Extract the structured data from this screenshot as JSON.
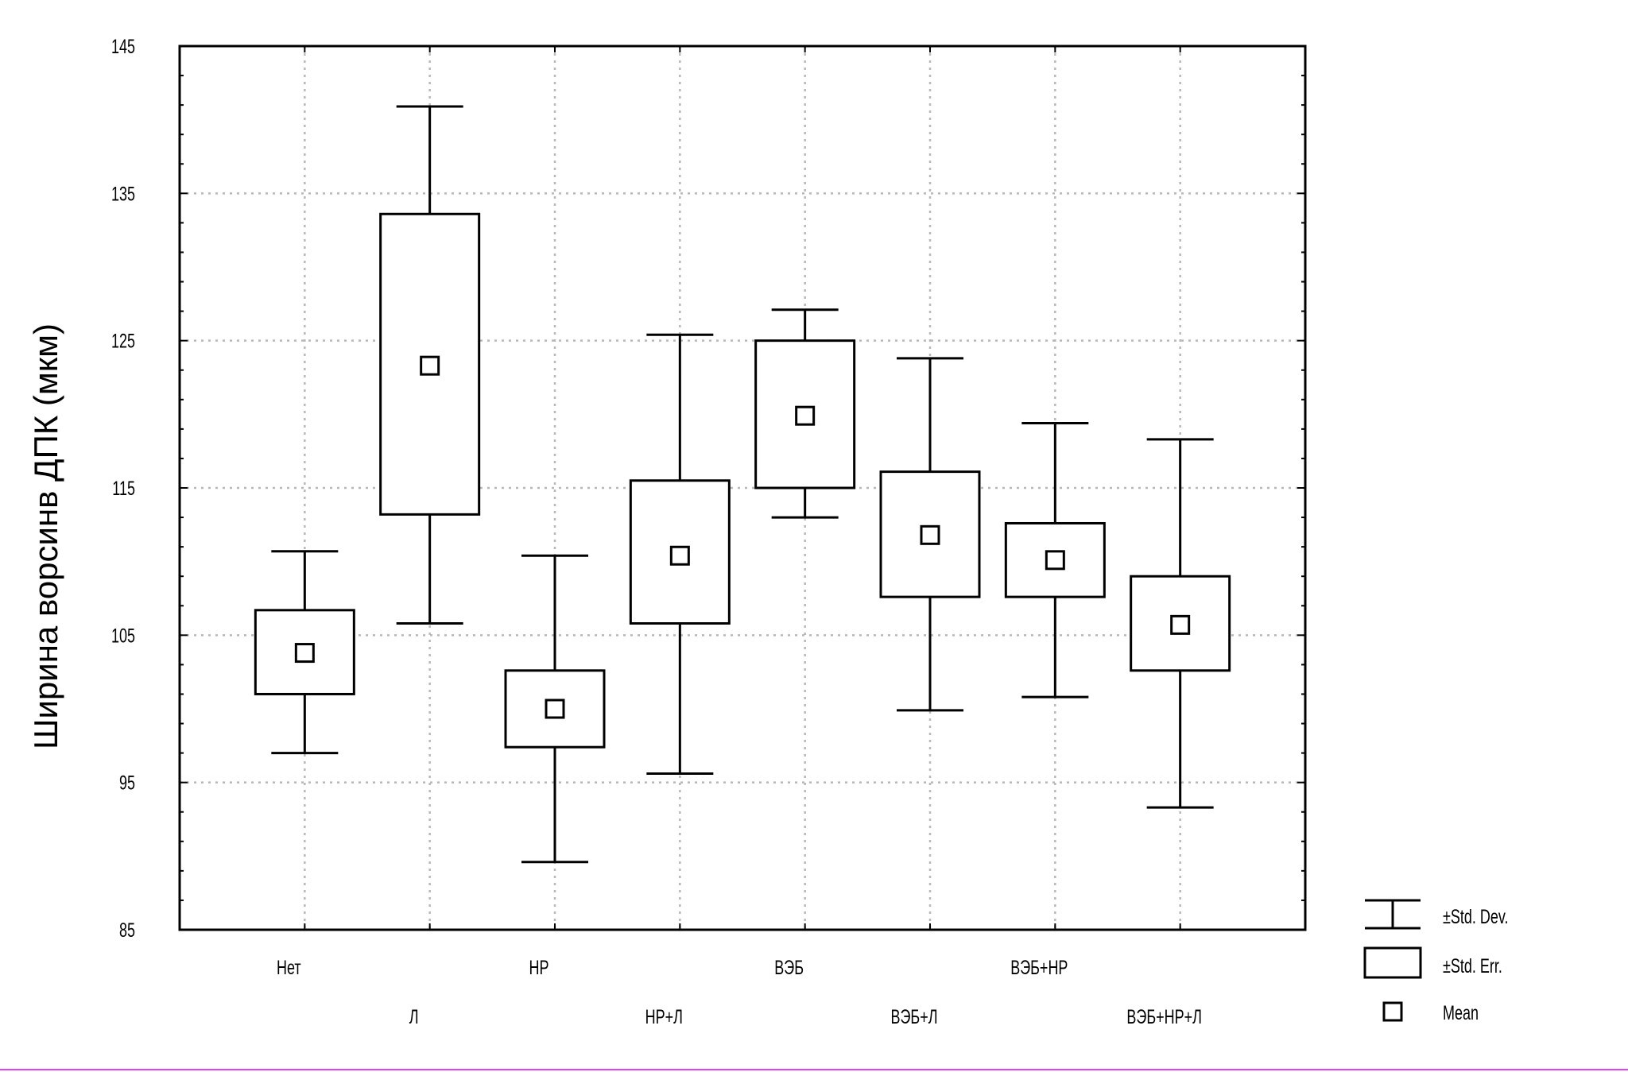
{
  "chart_data": {
    "type": "box",
    "ylabel": "Ширина ворсинв ДПК (мкм)",
    "ylim": [
      85,
      145
    ],
    "yticks": [
      85,
      95,
      105,
      115,
      125,
      135,
      145
    ],
    "ytick_labels": [
      "85",
      "95",
      "105",
      "115",
      "125",
      "135",
      "145"
    ],
    "grid": true,
    "legend_position": "bottom-right",
    "categories": [
      "Нет",
      "Л",
      "НР",
      "НР+Л",
      "ВЭБ",
      "ВЭБ+Л",
      "ВЭБ+НР",
      "ВЭБ+НР+Л"
    ],
    "series": [
      {
        "category": "Нет",
        "mean": 103.8,
        "se_low": 101.0,
        "se_high": 106.7,
        "sd_low": 97.0,
        "sd_high": 110.7
      },
      {
        "category": "Л",
        "mean": 123.3,
        "se_low": 113.2,
        "se_high": 133.6,
        "sd_low": 105.8,
        "sd_high": 140.9
      },
      {
        "category": "НР",
        "mean": 100.0,
        "se_low": 97.4,
        "se_high": 102.6,
        "sd_low": 89.6,
        "sd_high": 110.4
      },
      {
        "category": "НР+Л",
        "mean": 110.4,
        "se_low": 105.8,
        "se_high": 115.5,
        "sd_low": 95.6,
        "sd_high": 125.4
      },
      {
        "category": "ВЭБ",
        "mean": 119.9,
        "se_low": 115.0,
        "se_high": 125.0,
        "sd_low": 113.0,
        "sd_high": 127.1
      },
      {
        "category": "ВЭБ+Л",
        "mean": 111.8,
        "se_low": 107.6,
        "se_high": 116.1,
        "sd_low": 99.9,
        "sd_high": 123.8
      },
      {
        "category": "ВЭБ+НР",
        "mean": 110.1,
        "se_low": 107.6,
        "se_high": 112.6,
        "sd_low": 100.8,
        "sd_high": 119.4
      },
      {
        "category": "ВЭБ+НР+Л",
        "mean": 105.7,
        "se_low": 102.6,
        "se_high": 109.0,
        "sd_low": 93.3,
        "sd_high": 118.3
      }
    ],
    "legend": [
      {
        "key": "sd",
        "label": "±Std. Dev."
      },
      {
        "key": "se",
        "label": "±Std. Err."
      },
      {
        "key": "mean",
        "label": "Mean"
      }
    ]
  }
}
